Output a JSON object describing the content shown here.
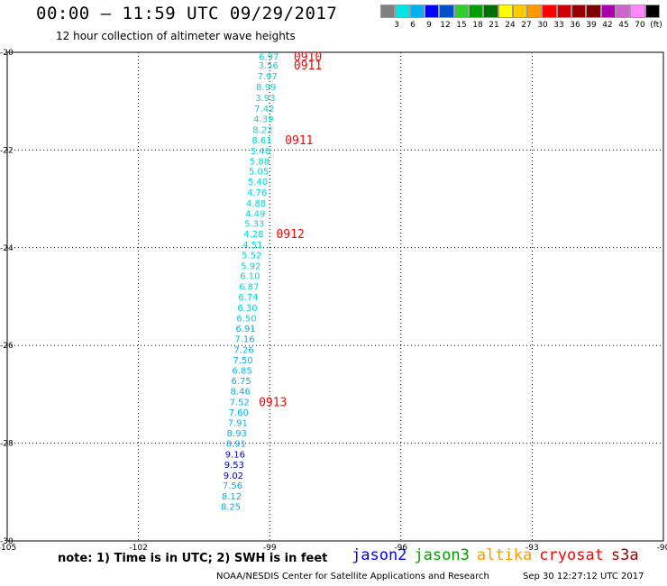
{
  "header": {
    "title": "00:00 – 11:59 UTC 09/29/2017",
    "subtitle": "12 hour collection of altimeter wave heights"
  },
  "legend": {
    "colors": [
      "#808080",
      "#00e5e5",
      "#00b0f0",
      "#0000ff",
      "#0050c8",
      "#33cc33",
      "#00a000",
      "#007000",
      "#ffff00",
      "#ffcc00",
      "#ff9900",
      "#ff0000",
      "#cc0000",
      "#990000",
      "#800000",
      "#aa00aa",
      "#cc66cc",
      "#ff88ff",
      "#000000"
    ],
    "tick_labels": [
      "3",
      "6",
      "9",
      "12",
      "15",
      "18",
      "21",
      "24",
      "27",
      "30",
      "33",
      "36",
      "39",
      "42",
      "45",
      "70",
      "(ft)"
    ]
  },
  "chart_data": {
    "type": "scatter",
    "xlim": [
      -105,
      -90
    ],
    "ylim": [
      -30,
      -20
    ],
    "x_ticks": [
      "-105",
      "-102",
      "-99",
      "-96",
      "-93",
      "-90"
    ],
    "y_ticks": [
      "-20",
      "-22",
      "-24",
      "-26",
      "-28",
      "-30"
    ],
    "grid": true,
    "points": [
      {
        "label": "6.97",
        "lat": -20.08,
        "lon": -99.02,
        "color": "#00d4d4"
      },
      {
        "label": "3.56",
        "lat": -20.26,
        "lon": -99.03,
        "color": "#00d4d4"
      },
      {
        "label": "7.97",
        "lat": -20.48,
        "lon": -99.05,
        "color": "#00d4d4"
      },
      {
        "label": "8.99",
        "lat": -20.7,
        "lon": -99.08,
        "color": "#00d4d4"
      },
      {
        "label": "3.93",
        "lat": -20.92,
        "lon": -99.1,
        "color": "#00d4d4"
      },
      {
        "label": "7.42",
        "lat": -21.14,
        "lon": -99.12,
        "color": "#00d4d4"
      },
      {
        "label": "4.39",
        "lat": -21.36,
        "lon": -99.14,
        "color": "#00d4d4"
      },
      {
        "label": "8.22",
        "lat": -21.58,
        "lon": -99.16,
        "color": "#00d4d4"
      },
      {
        "label": "8.61",
        "lat": -21.79,
        "lon": -99.18,
        "color": "#00d4d4"
      },
      {
        "label": "5.40",
        "lat": -22.01,
        "lon": -99.21,
        "color": "#00d4d4"
      },
      {
        "label": "5.88",
        "lat": -22.22,
        "lon": -99.23,
        "color": "#00d4d4"
      },
      {
        "label": "5.05",
        "lat": -22.43,
        "lon": -99.25,
        "color": "#00d4d4"
      },
      {
        "label": "5.40",
        "lat": -22.64,
        "lon": -99.27,
        "color": "#00d4d4"
      },
      {
        "label": "4.76",
        "lat": -22.86,
        "lon": -99.29,
        "color": "#00d4d4"
      },
      {
        "label": "4.88",
        "lat": -23.08,
        "lon": -99.31,
        "color": "#00d4d4"
      },
      {
        "label": "4.49",
        "lat": -23.29,
        "lon": -99.33,
        "color": "#00d4d4"
      },
      {
        "label": "5.33",
        "lat": -23.5,
        "lon": -99.35,
        "color": "#00d4d4"
      },
      {
        "label": "4.28",
        "lat": -23.71,
        "lon": -99.37,
        "color": "#00d4d4"
      },
      {
        "label": "4.51",
        "lat": -23.93,
        "lon": -99.39,
        "color": "#00d4d4"
      },
      {
        "label": "5.52",
        "lat": -24.14,
        "lon": -99.41,
        "color": "#00d4d4"
      },
      {
        "label": "5.92",
        "lat": -24.36,
        "lon": -99.43,
        "color": "#00d4d4"
      },
      {
        "label": "6.10",
        "lat": -24.57,
        "lon": -99.45,
        "color": "#00d4d4"
      },
      {
        "label": "6.87",
        "lat": -24.79,
        "lon": -99.47,
        "color": "#00d4d4"
      },
      {
        "label": "6.74",
        "lat": -25.0,
        "lon": -99.49,
        "color": "#00d4d4"
      },
      {
        "label": "6.30",
        "lat": -25.22,
        "lon": -99.51,
        "color": "#00d4d4"
      },
      {
        "label": "6.50",
        "lat": -25.43,
        "lon": -99.53,
        "color": "#00d4d4"
      },
      {
        "label": "6.91",
        "lat": -25.65,
        "lon": -99.55,
        "color": "#00b0f0"
      },
      {
        "label": "7.16",
        "lat": -25.86,
        "lon": -99.57,
        "color": "#00b0f0"
      },
      {
        "label": "7.26",
        "lat": -26.08,
        "lon": -99.59,
        "color": "#00b0f0"
      },
      {
        "label": "7.50",
        "lat": -26.29,
        "lon": -99.61,
        "color": "#00b0f0"
      },
      {
        "label": "6.85",
        "lat": -26.5,
        "lon": -99.63,
        "color": "#00b0f0"
      },
      {
        "label": "6.75",
        "lat": -26.72,
        "lon": -99.65,
        "color": "#00b0f0"
      },
      {
        "label": "8.46",
        "lat": -26.93,
        "lon": -99.67,
        "color": "#00b0f0"
      },
      {
        "label": "7.52",
        "lat": -27.15,
        "lon": -99.69,
        "color": "#00b0f0"
      },
      {
        "label": "7.60",
        "lat": -27.36,
        "lon": -99.71,
        "color": "#00b0f0"
      },
      {
        "label": "7.91",
        "lat": -27.57,
        "lon": -99.73,
        "color": "#00b0f0"
      },
      {
        "label": "8.93",
        "lat": -27.79,
        "lon": -99.75,
        "color": "#00b0f0"
      },
      {
        "label": "8.91",
        "lat": -28.0,
        "lon": -99.77,
        "color": "#00b0f0"
      },
      {
        "label": "9.16",
        "lat": -28.22,
        "lon": -99.79,
        "color": "#0000cc"
      },
      {
        "label": "9.53",
        "lat": -28.43,
        "lon": -99.81,
        "color": "#0000cc"
      },
      {
        "label": "9.02",
        "lat": -28.65,
        "lon": -99.83,
        "color": "#0000cc"
      },
      {
        "label": "7.56",
        "lat": -28.86,
        "lon": -99.85,
        "color": "#00b0f0"
      },
      {
        "label": "8.12",
        "lat": -29.08,
        "lon": -99.87,
        "color": "#00b0f0"
      },
      {
        "label": "8.25",
        "lat": -29.29,
        "lon": -99.89,
        "color": "#00b0f0"
      }
    ],
    "time_labels": [
      {
        "label": "0910",
        "lat": -20.08,
        "lon": -98.45
      },
      {
        "label": "0911",
        "lat": -20.26,
        "lon": -98.45
      },
      {
        "label": "0911",
        "lat": -21.79,
        "lon": -98.65
      },
      {
        "label": "0912",
        "lat": -23.71,
        "lon": -98.85
      },
      {
        "label": "0913",
        "lat": -27.15,
        "lon": -99.25
      }
    ]
  },
  "footer": {
    "note": "note: 1) Time is in UTC; 2) SWH is in feet",
    "missions": [
      {
        "name": "jason2",
        "color": "#0000ff"
      },
      {
        "name": "jason3",
        "color": "#00a000"
      },
      {
        "name": "altika",
        "color": "#ff9900"
      },
      {
        "name": "cryosat",
        "color": "#ff0000"
      },
      {
        "name": "s3a",
        "color": "#990000"
      }
    ],
    "credit": "NOAA/NESDIS Center for Satellite Applications and Research",
    "timestamp": "Sep 30 12:27:12 UTC 2017"
  }
}
